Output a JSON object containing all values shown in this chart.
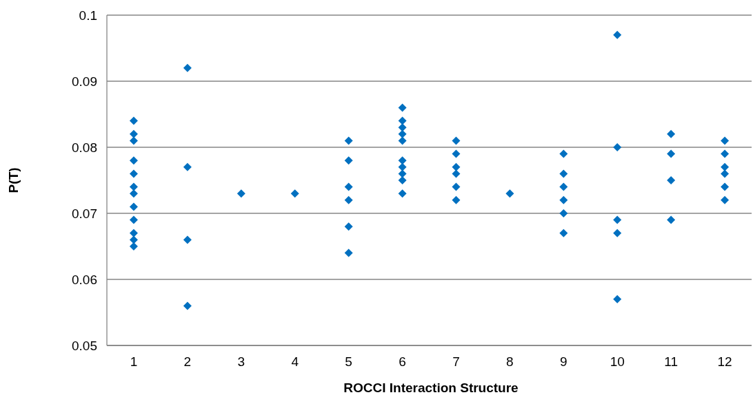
{
  "chart_data": {
    "type": "scatter",
    "xlabel": "ROCCI Interaction Structure",
    "ylabel": "P(T)",
    "xlim": [
      0.5,
      12.5
    ],
    "xticks": [
      1,
      2,
      3,
      4,
      5,
      6,
      7,
      8,
      9,
      10,
      11,
      12
    ],
    "ylim": [
      0.05,
      0.1
    ],
    "yticks": [
      0.05,
      0.06,
      0.07,
      0.08,
      0.09,
      0.1
    ],
    "grid": "y",
    "marker": "diamond",
    "series": [
      {
        "color": "#0070c0",
        "x": [
          1,
          1,
          1,
          1,
          1,
          1,
          1,
          1,
          1,
          1,
          1,
          1,
          2,
          2,
          2,
          2,
          3,
          4,
          5,
          5,
          5,
          5,
          5,
          5,
          6,
          6,
          6,
          6,
          6,
          6,
          6,
          6,
          6,
          6,
          7,
          7,
          7,
          7,
          7,
          7,
          8,
          9,
          9,
          9,
          9,
          9,
          9,
          10,
          10,
          10,
          10,
          10,
          11,
          11,
          11,
          11,
          12,
          12,
          12,
          12,
          12,
          12
        ],
        "values": [
          0.084,
          0.082,
          0.081,
          0.078,
          0.076,
          0.074,
          0.073,
          0.071,
          0.069,
          0.067,
          0.066,
          0.065,
          0.092,
          0.077,
          0.066,
          0.056,
          0.073,
          0.073,
          0.081,
          0.078,
          0.074,
          0.072,
          0.068,
          0.064,
          0.086,
          0.084,
          0.083,
          0.082,
          0.081,
          0.078,
          0.077,
          0.076,
          0.075,
          0.073,
          0.081,
          0.079,
          0.077,
          0.076,
          0.074,
          0.072,
          0.073,
          0.079,
          0.076,
          0.074,
          0.072,
          0.07,
          0.067,
          0.097,
          0.08,
          0.069,
          0.067,
          0.057,
          0.082,
          0.079,
          0.075,
          0.069,
          0.081,
          0.079,
          0.077,
          0.076,
          0.074,
          0.072
        ]
      }
    ]
  }
}
